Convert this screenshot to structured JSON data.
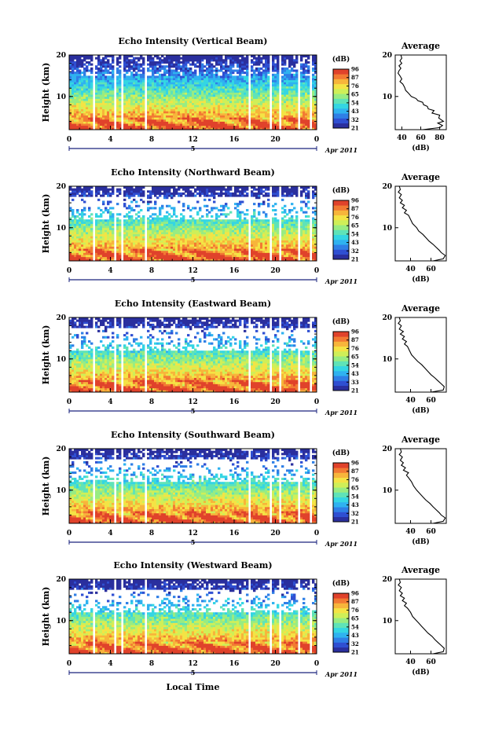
{
  "figure": {
    "date_label": "Apr 2011",
    "day_label": "5",
    "xlabel_bottom": "Local Time",
    "colorbar_unit": "(dB)",
    "avg_title": "Average",
    "avg_xlabel": "(dB)"
  },
  "colors": {
    "colormap": [
      "#2a2f9e",
      "#2f4fd2",
      "#2f7fe6",
      "#2fb2f0",
      "#34d6e3",
      "#5fe3b8",
      "#98ec82",
      "#cfef58",
      "#f4e345",
      "#f7b53b",
      "#f27a33",
      "#e0422b"
    ],
    "gap_color": "#ffffff",
    "frame_color": "#000000"
  },
  "chart_data": [
    {
      "type": "heatmap",
      "title": "Echo Intensity (Vertical Beam)",
      "ylabel": "Height (km)",
      "xlim": [
        0,
        24
      ],
      "ylim": [
        2,
        20
      ],
      "x_ticks": [
        "0",
        "4",
        "8",
        "12",
        "16",
        "20",
        "0"
      ],
      "y_ticks": [
        10,
        20
      ],
      "colorbar_ticks": [
        "96",
        "87",
        "76",
        "65",
        "54",
        "43",
        "32",
        "21"
      ],
      "data_gaps_hours": [
        [
          2.3,
          2.6
        ],
        [
          4.3,
          4.5
        ],
        [
          5.0,
          5.3
        ],
        [
          6.3,
          6.5
        ],
        [
          7.2,
          7.5
        ],
        [
          17.3,
          17.5
        ],
        [
          19.4,
          19.6
        ],
        [
          20.3,
          20.5
        ],
        [
          22.1,
          22.3
        ],
        [
          23.3,
          23.5
        ]
      ],
      "average_profile": {
        "x_ticks": [
          "40",
          "60",
          "80"
        ],
        "xlim": [
          33,
          87
        ],
        "ylim": [
          2,
          20
        ],
        "points": [
          [
            62,
            2
          ],
          [
            80,
            2.5
          ],
          [
            83,
            3
          ],
          [
            78,
            3.6
          ],
          [
            84,
            4
          ],
          [
            79,
            4.8
          ],
          [
            80,
            5.5
          ],
          [
            72,
            6
          ],
          [
            74,
            6.6
          ],
          [
            68,
            7
          ],
          [
            67,
            7.6
          ],
          [
            63,
            8
          ],
          [
            62,
            8.6
          ],
          [
            57,
            9
          ],
          [
            55,
            9.5
          ],
          [
            50,
            10
          ],
          [
            47,
            10.8
          ],
          [
            44,
            11.5
          ],
          [
            43,
            12.2
          ],
          [
            41,
            13
          ],
          [
            38,
            13.6
          ],
          [
            40,
            14.2
          ],
          [
            38,
            15
          ],
          [
            36,
            15.6
          ],
          [
            37,
            16.2
          ],
          [
            39,
            16.8
          ],
          [
            37,
            17.4
          ],
          [
            40,
            18
          ],
          [
            38,
            18.6
          ],
          [
            40,
            19.2
          ],
          [
            39,
            20
          ]
        ]
      }
    },
    {
      "type": "heatmap",
      "title": "Echo Intensity (Northward Beam)",
      "ylabel": "Height (km)",
      "xlim": [
        0,
        24
      ],
      "ylim": [
        2,
        20
      ],
      "x_ticks": [
        "0",
        "4",
        "8",
        "12",
        "16",
        "20",
        "0"
      ],
      "y_ticks": [
        10,
        20
      ],
      "colorbar_ticks": [
        "96",
        "87",
        "76",
        "65",
        "54",
        "43",
        "32",
        "21"
      ],
      "data_gaps_hours": [
        [
          2.3,
          2.6
        ],
        [
          4.3,
          4.5
        ],
        [
          5.0,
          5.3
        ],
        [
          6.3,
          6.5
        ],
        [
          7.2,
          7.5
        ],
        [
          17.3,
          17.5
        ],
        [
          19.4,
          19.6
        ],
        [
          20.3,
          20.5
        ],
        [
          22.1,
          22.3
        ],
        [
          23.3,
          23.5
        ]
      ],
      "average_profile": {
        "x_ticks": [
          "40",
          "60"
        ],
        "xlim": [
          25,
          75
        ],
        "ylim": [
          2,
          20
        ],
        "points": [
          [
            62,
            2
          ],
          [
            72,
            2.5
          ],
          [
            74,
            3.3
          ],
          [
            70,
            4
          ],
          [
            68,
            4.6
          ],
          [
            65,
            5.3
          ],
          [
            62,
            6
          ],
          [
            58,
            6.8
          ],
          [
            55,
            7.6
          ],
          [
            52,
            8.4
          ],
          [
            48,
            9.2
          ],
          [
            46,
            10
          ],
          [
            42,
            11
          ],
          [
            40,
            12
          ],
          [
            38,
            13
          ],
          [
            34,
            13.6
          ],
          [
            36,
            14.2
          ],
          [
            32,
            14.8
          ],
          [
            34,
            15.4
          ],
          [
            30,
            16
          ],
          [
            32,
            16.6
          ],
          [
            29,
            17.2
          ],
          [
            31,
            18
          ],
          [
            28,
            18.6
          ],
          [
            30,
            19.2
          ],
          [
            29,
            20
          ]
        ]
      }
    },
    {
      "type": "heatmap",
      "title": "Echo Intensity (Eastward Beam)",
      "ylabel": "Height (km)",
      "xlim": [
        0,
        24
      ],
      "ylim": [
        2,
        20
      ],
      "x_ticks": [
        "0",
        "4",
        "8",
        "12",
        "16",
        "20",
        "0"
      ],
      "y_ticks": [
        10,
        20
      ],
      "colorbar_ticks": [
        "96",
        "87",
        "76",
        "65",
        "54",
        "43",
        "33",
        "21"
      ],
      "data_gaps_hours": [
        [
          2.3,
          2.6
        ],
        [
          4.3,
          4.5
        ],
        [
          5.0,
          5.3
        ],
        [
          6.3,
          6.5
        ],
        [
          7.2,
          7.5
        ],
        [
          17.3,
          17.5
        ],
        [
          19.4,
          19.6
        ],
        [
          20.3,
          20.5
        ],
        [
          22.1,
          22.3
        ],
        [
          23.3,
          23.5
        ]
      ],
      "average_profile": {
        "x_ticks": [
          "40",
          "60"
        ],
        "xlim": [
          25,
          75
        ],
        "ylim": [
          2,
          20
        ],
        "points": [
          [
            60,
            2
          ],
          [
            72,
            2.5
          ],
          [
            73,
            3.3
          ],
          [
            70,
            4
          ],
          [
            67,
            4.7
          ],
          [
            64,
            5.4
          ],
          [
            60,
            6.2
          ],
          [
            57,
            7
          ],
          [
            54,
            7.8
          ],
          [
            51,
            8.6
          ],
          [
            47,
            9.4
          ],
          [
            44,
            10.2
          ],
          [
            41,
            11
          ],
          [
            39,
            12
          ],
          [
            37,
            13
          ],
          [
            34,
            13.6
          ],
          [
            36,
            14.2
          ],
          [
            32,
            14.8
          ],
          [
            34,
            15.4
          ],
          [
            30,
            16
          ],
          [
            33,
            16.6
          ],
          [
            29,
            17.2
          ],
          [
            31,
            18
          ],
          [
            28,
            18.6
          ],
          [
            30,
            19.2
          ],
          [
            29,
            20
          ]
        ]
      }
    },
    {
      "type": "heatmap",
      "title": "Echo Intensity (Southward Beam)",
      "ylabel": "Height (km)",
      "xlim": [
        0,
        24
      ],
      "ylim": [
        2,
        20
      ],
      "x_ticks": [
        "0",
        "4",
        "8",
        "12",
        "16",
        "20",
        "0"
      ],
      "y_ticks": [
        10,
        20
      ],
      "colorbar_ticks": [
        "96",
        "87",
        "76",
        "65",
        "54",
        "43",
        "32",
        "21"
      ],
      "data_gaps_hours": [
        [
          2.3,
          2.6
        ],
        [
          4.3,
          4.5
        ],
        [
          5.0,
          5.3
        ],
        [
          6.3,
          6.5
        ],
        [
          7.2,
          7.5
        ],
        [
          17.3,
          17.5
        ],
        [
          19.4,
          19.6
        ],
        [
          20.3,
          20.5
        ],
        [
          22.1,
          22.3
        ],
        [
          23.3,
          23.5
        ]
      ],
      "average_profile": {
        "x_ticks": [
          "40",
          "60"
        ],
        "xlim": [
          25,
          75
        ],
        "ylim": [
          2,
          20
        ],
        "points": [
          [
            62,
            2
          ],
          [
            72,
            2.5
          ],
          [
            74,
            3.3
          ],
          [
            70,
            4
          ],
          [
            68,
            4.6
          ],
          [
            65,
            5.3
          ],
          [
            62,
            6
          ],
          [
            59,
            6.8
          ],
          [
            55,
            7.6
          ],
          [
            52,
            8.4
          ],
          [
            49,
            9.2
          ],
          [
            46,
            10
          ],
          [
            43,
            11
          ],
          [
            41,
            12
          ],
          [
            38,
            13
          ],
          [
            36,
            13.6
          ],
          [
            38,
            14.2
          ],
          [
            33,
            14.8
          ],
          [
            35,
            15.4
          ],
          [
            31,
            16
          ],
          [
            33,
            16.6
          ],
          [
            30,
            17.2
          ],
          [
            32,
            18
          ],
          [
            29,
            18.6
          ],
          [
            31,
            19.2
          ],
          [
            30,
            20
          ]
        ]
      }
    },
    {
      "type": "heatmap",
      "title": "Echo Intensity (Westward Beam)",
      "ylabel": "Height (km)",
      "xlim": [
        0,
        24
      ],
      "ylim": [
        2,
        20
      ],
      "x_ticks": [
        "0",
        "4",
        "8",
        "12",
        "16",
        "20",
        "0"
      ],
      "y_ticks": [
        10,
        20
      ],
      "colorbar_ticks": [
        "96",
        "87",
        "76",
        "65",
        "54",
        "43",
        "32",
        "21"
      ],
      "data_gaps_hours": [
        [
          2.3,
          2.6
        ],
        [
          4.3,
          4.5
        ],
        [
          5.0,
          5.3
        ],
        [
          6.3,
          6.5
        ],
        [
          7.2,
          7.5
        ],
        [
          17.3,
          17.5
        ],
        [
          19.4,
          19.6
        ],
        [
          20.3,
          20.5
        ],
        [
          22.1,
          22.3
        ],
        [
          23.3,
          23.5
        ]
      ],
      "average_profile": {
        "x_ticks": [
          "40",
          "60"
        ],
        "xlim": [
          25,
          75
        ],
        "ylim": [
          2,
          20
        ],
        "points": [
          [
            62,
            2
          ],
          [
            72,
            2.5
          ],
          [
            73,
            3.3
          ],
          [
            70,
            4
          ],
          [
            67,
            4.7
          ],
          [
            64,
            5.4
          ],
          [
            61,
            6.2
          ],
          [
            57,
            7
          ],
          [
            54,
            7.8
          ],
          [
            51,
            8.6
          ],
          [
            48,
            9.4
          ],
          [
            45,
            10.2
          ],
          [
            42,
            11
          ],
          [
            40,
            12
          ],
          [
            37,
            13
          ],
          [
            34,
            13.6
          ],
          [
            36,
            14.2
          ],
          [
            32,
            14.8
          ],
          [
            34,
            15.4
          ],
          [
            30,
            16
          ],
          [
            32,
            16.6
          ],
          [
            29,
            17.2
          ],
          [
            31,
            18
          ],
          [
            28,
            18.6
          ],
          [
            30,
            19.2
          ],
          [
            29,
            20
          ]
        ]
      }
    }
  ]
}
